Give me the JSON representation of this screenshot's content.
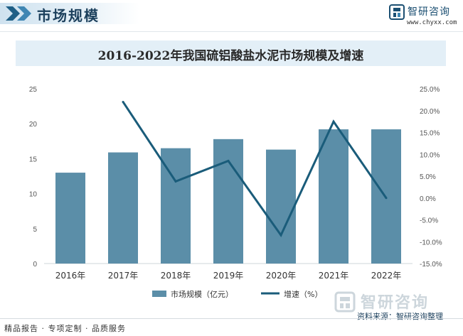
{
  "header": {
    "section_title": "市场规模",
    "brand_name": "智研咨询",
    "brand_url": "www.chyxx.com"
  },
  "colors": {
    "bar": "#5b8ea8",
    "line": "#1a5c7a",
    "title_band": "#e3eff7",
    "section_title": "#1b3f5c"
  },
  "chart_data": {
    "type": "bar",
    "title": "2016-2022年我国硫铝酸盐水泥市场规模及增速",
    "categories": [
      "2016年",
      "2017年",
      "2018年",
      "2019年",
      "2020年",
      "2021年",
      "2022年"
    ],
    "series": [
      {
        "name": "市场规模（亿元）",
        "type": "bar",
        "axis": "left",
        "values": [
          13.0,
          15.9,
          16.5,
          17.8,
          16.3,
          19.2,
          19.2
        ]
      },
      {
        "name": "增速（%）",
        "type": "line",
        "axis": "right",
        "values": [
          null,
          22.0,
          3.8,
          8.5,
          -8.5,
          17.5,
          0.0
        ]
      }
    ],
    "left_axis": {
      "ylim": [
        0,
        25
      ],
      "ticks": [
        "0",
        "5",
        "10",
        "15",
        "20",
        "25"
      ]
    },
    "right_axis": {
      "ylim": [
        -15,
        25
      ],
      "ticks": [
        "-15.0%",
        "-10.0%",
        "-5.0%",
        "0.0%",
        "5.0%",
        "10.0%",
        "15.0%",
        "20.0%",
        "25.0%"
      ]
    },
    "grid": false,
    "legend_position": "bottom"
  },
  "watermark": {
    "text": "智研咨询"
  },
  "footer": {
    "left": "精品报告 · 专项定制 · 品质服务",
    "source": "资料来源：智研咨询整理"
  }
}
